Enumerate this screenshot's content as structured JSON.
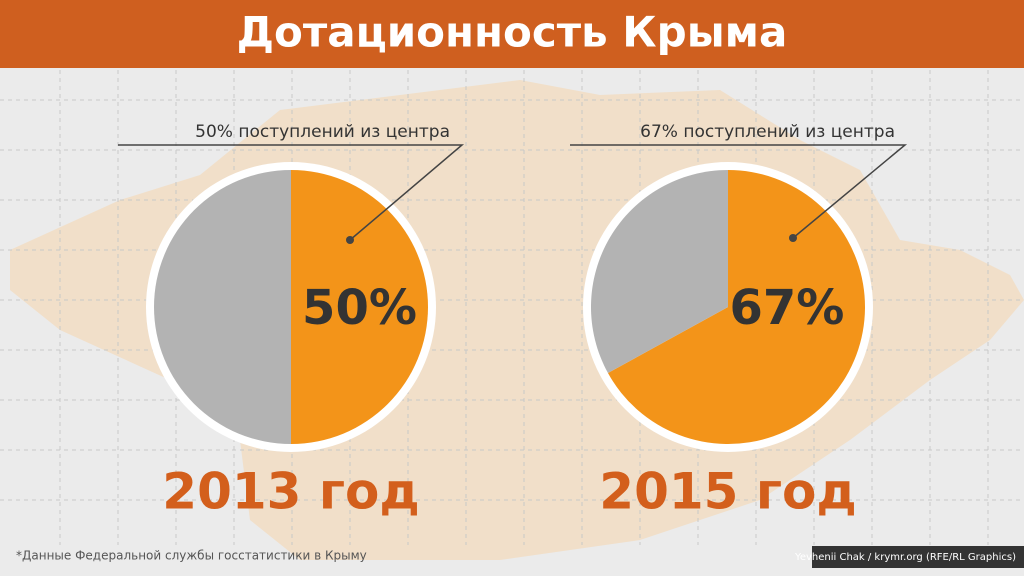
{
  "header": {
    "title": "Дотационность Крыма"
  },
  "chart_data": [
    {
      "type": "pie",
      "annotation": "50% поступлений из центра",
      "caption": "2013 год",
      "values": [
        50,
        50
      ],
      "value_labels": [
        "50%",
        null
      ],
      "colors": [
        "#f39419",
        "#b3b3b3"
      ]
    },
    {
      "type": "pie",
      "annotation": "67% поступлений из центра",
      "caption": "2015 год",
      "values": [
        67,
        33
      ],
      "value_labels": [
        "67%",
        null
      ],
      "colors": [
        "#f39419",
        "#b3b3b3"
      ]
    }
  ],
  "footer": {
    "note": "*Данные Федеральной службы госстатистики в Крыму",
    "credit": "Yevhenii Chak / krymr.org (RFE/RL Graphics)"
  }
}
